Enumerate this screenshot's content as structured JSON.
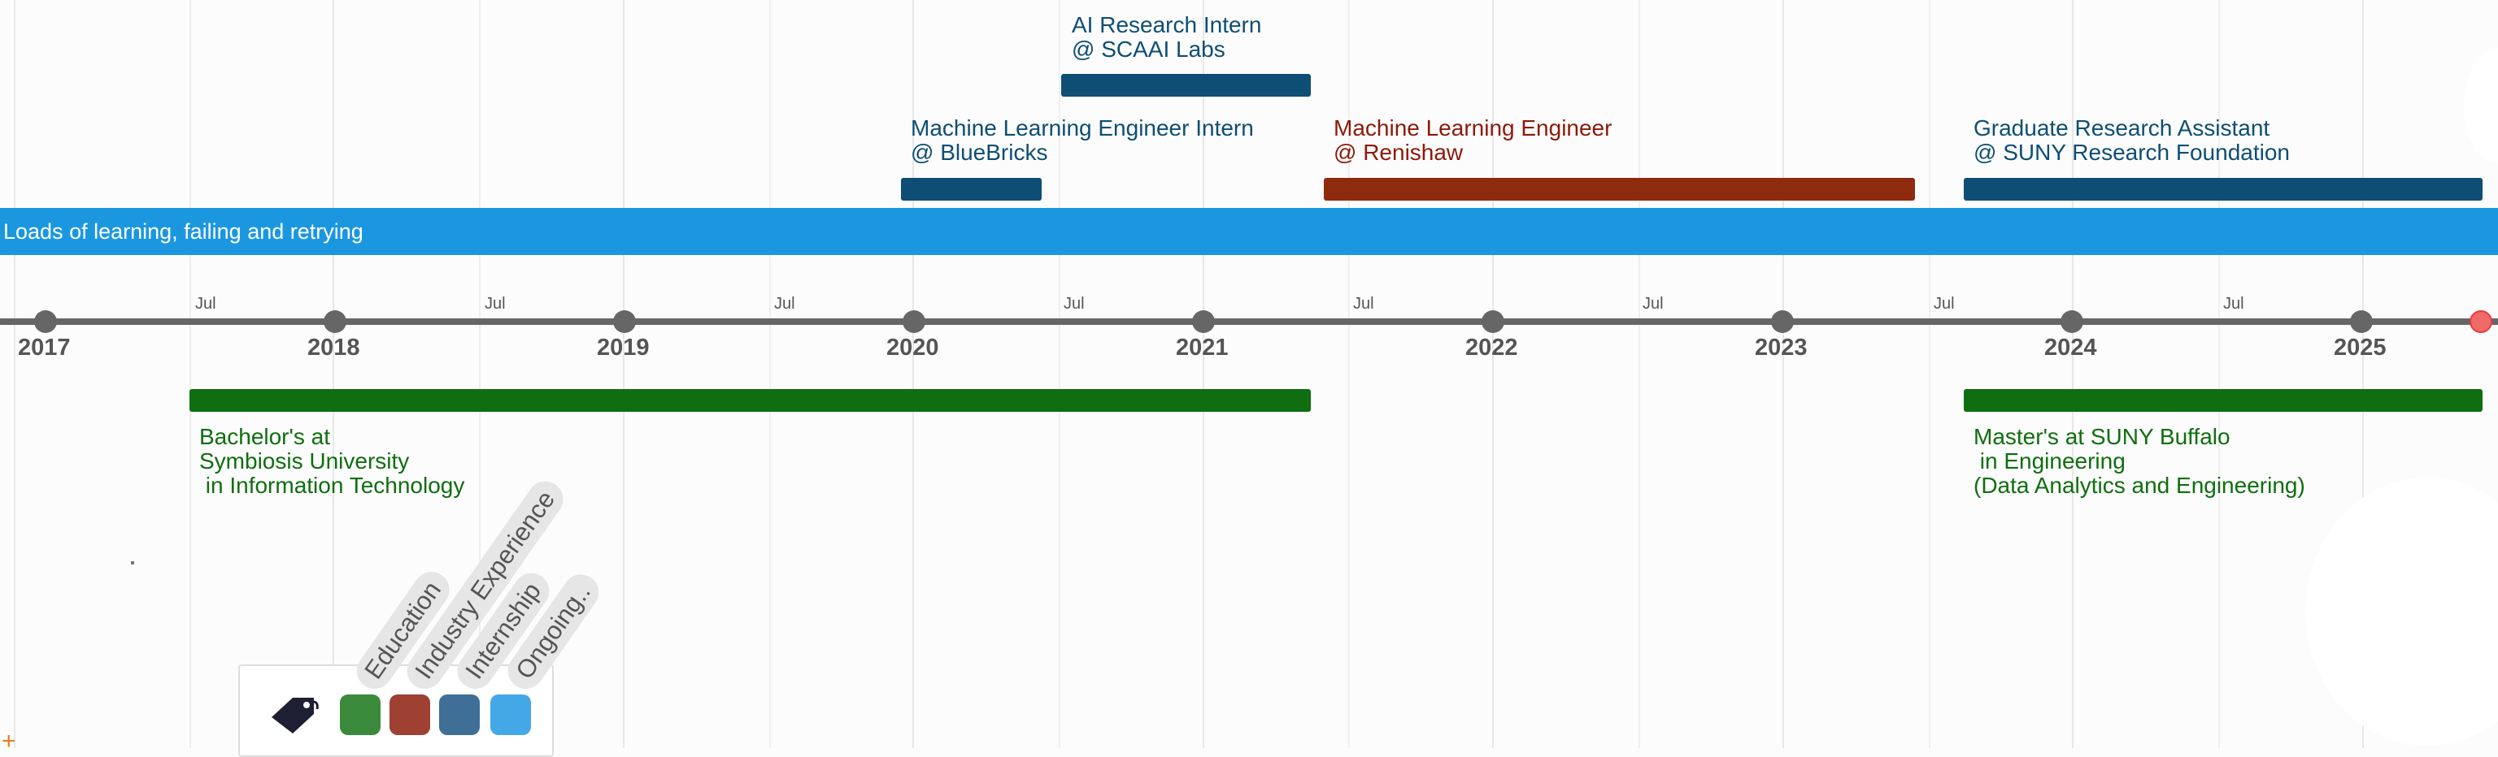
{
  "banner": {
    "text": "Loads of learning, failing and retrying",
    "color": "#1b97e0"
  },
  "timeline": {
    "years": [
      "2017",
      "2018",
      "2019",
      "2020",
      "2021",
      "2022",
      "2023",
      "2024",
      "2025"
    ],
    "mid_year_label": "Jul",
    "today_marker_color": "#e83b3b"
  },
  "items": {
    "ai_intern": {
      "line1": "AI Research Intern",
      "line2": "@ SCAAI Labs",
      "category": "Internship"
    },
    "ml_intern": {
      "line1": "Machine Learning Engineer Intern",
      "line2": "@ BlueBricks",
      "category": "Internship"
    },
    "ml_engineer": {
      "line1": "Machine Learning Engineer",
      "line2": "@ Renishaw",
      "category": "Industry Experience"
    },
    "gra": {
      "line1": "Graduate Research Assistant",
      "line2": "@ SUNY Research Foundation",
      "category": "Internship"
    },
    "bachelors": {
      "line1": "Bachelor's at",
      "line2": "Symbiosis University",
      "line3": " in Information Technology",
      "category": "Education"
    },
    "masters": {
      "line1": "Master's at SUNY Buffalo",
      "line2": " in Engineering",
      "line3": "(Data Analytics and Engineering)",
      "category": "Education"
    }
  },
  "legend": {
    "icon": "tag-icon",
    "entries": [
      {
        "label": "Education",
        "color": "#3b8a3b"
      },
      {
        "label": "Industry Experience",
        "color": "#9e4032"
      },
      {
        "label": "Internship",
        "color": "#3f6f96"
      },
      {
        "label": "Ongoing..",
        "color": "#45a8e6"
      }
    ]
  },
  "colors": {
    "education": "#0f6e0f",
    "industry": "#8e2a0e",
    "internship": "#0e4e74",
    "ongoing": "#1b97e0"
  }
}
